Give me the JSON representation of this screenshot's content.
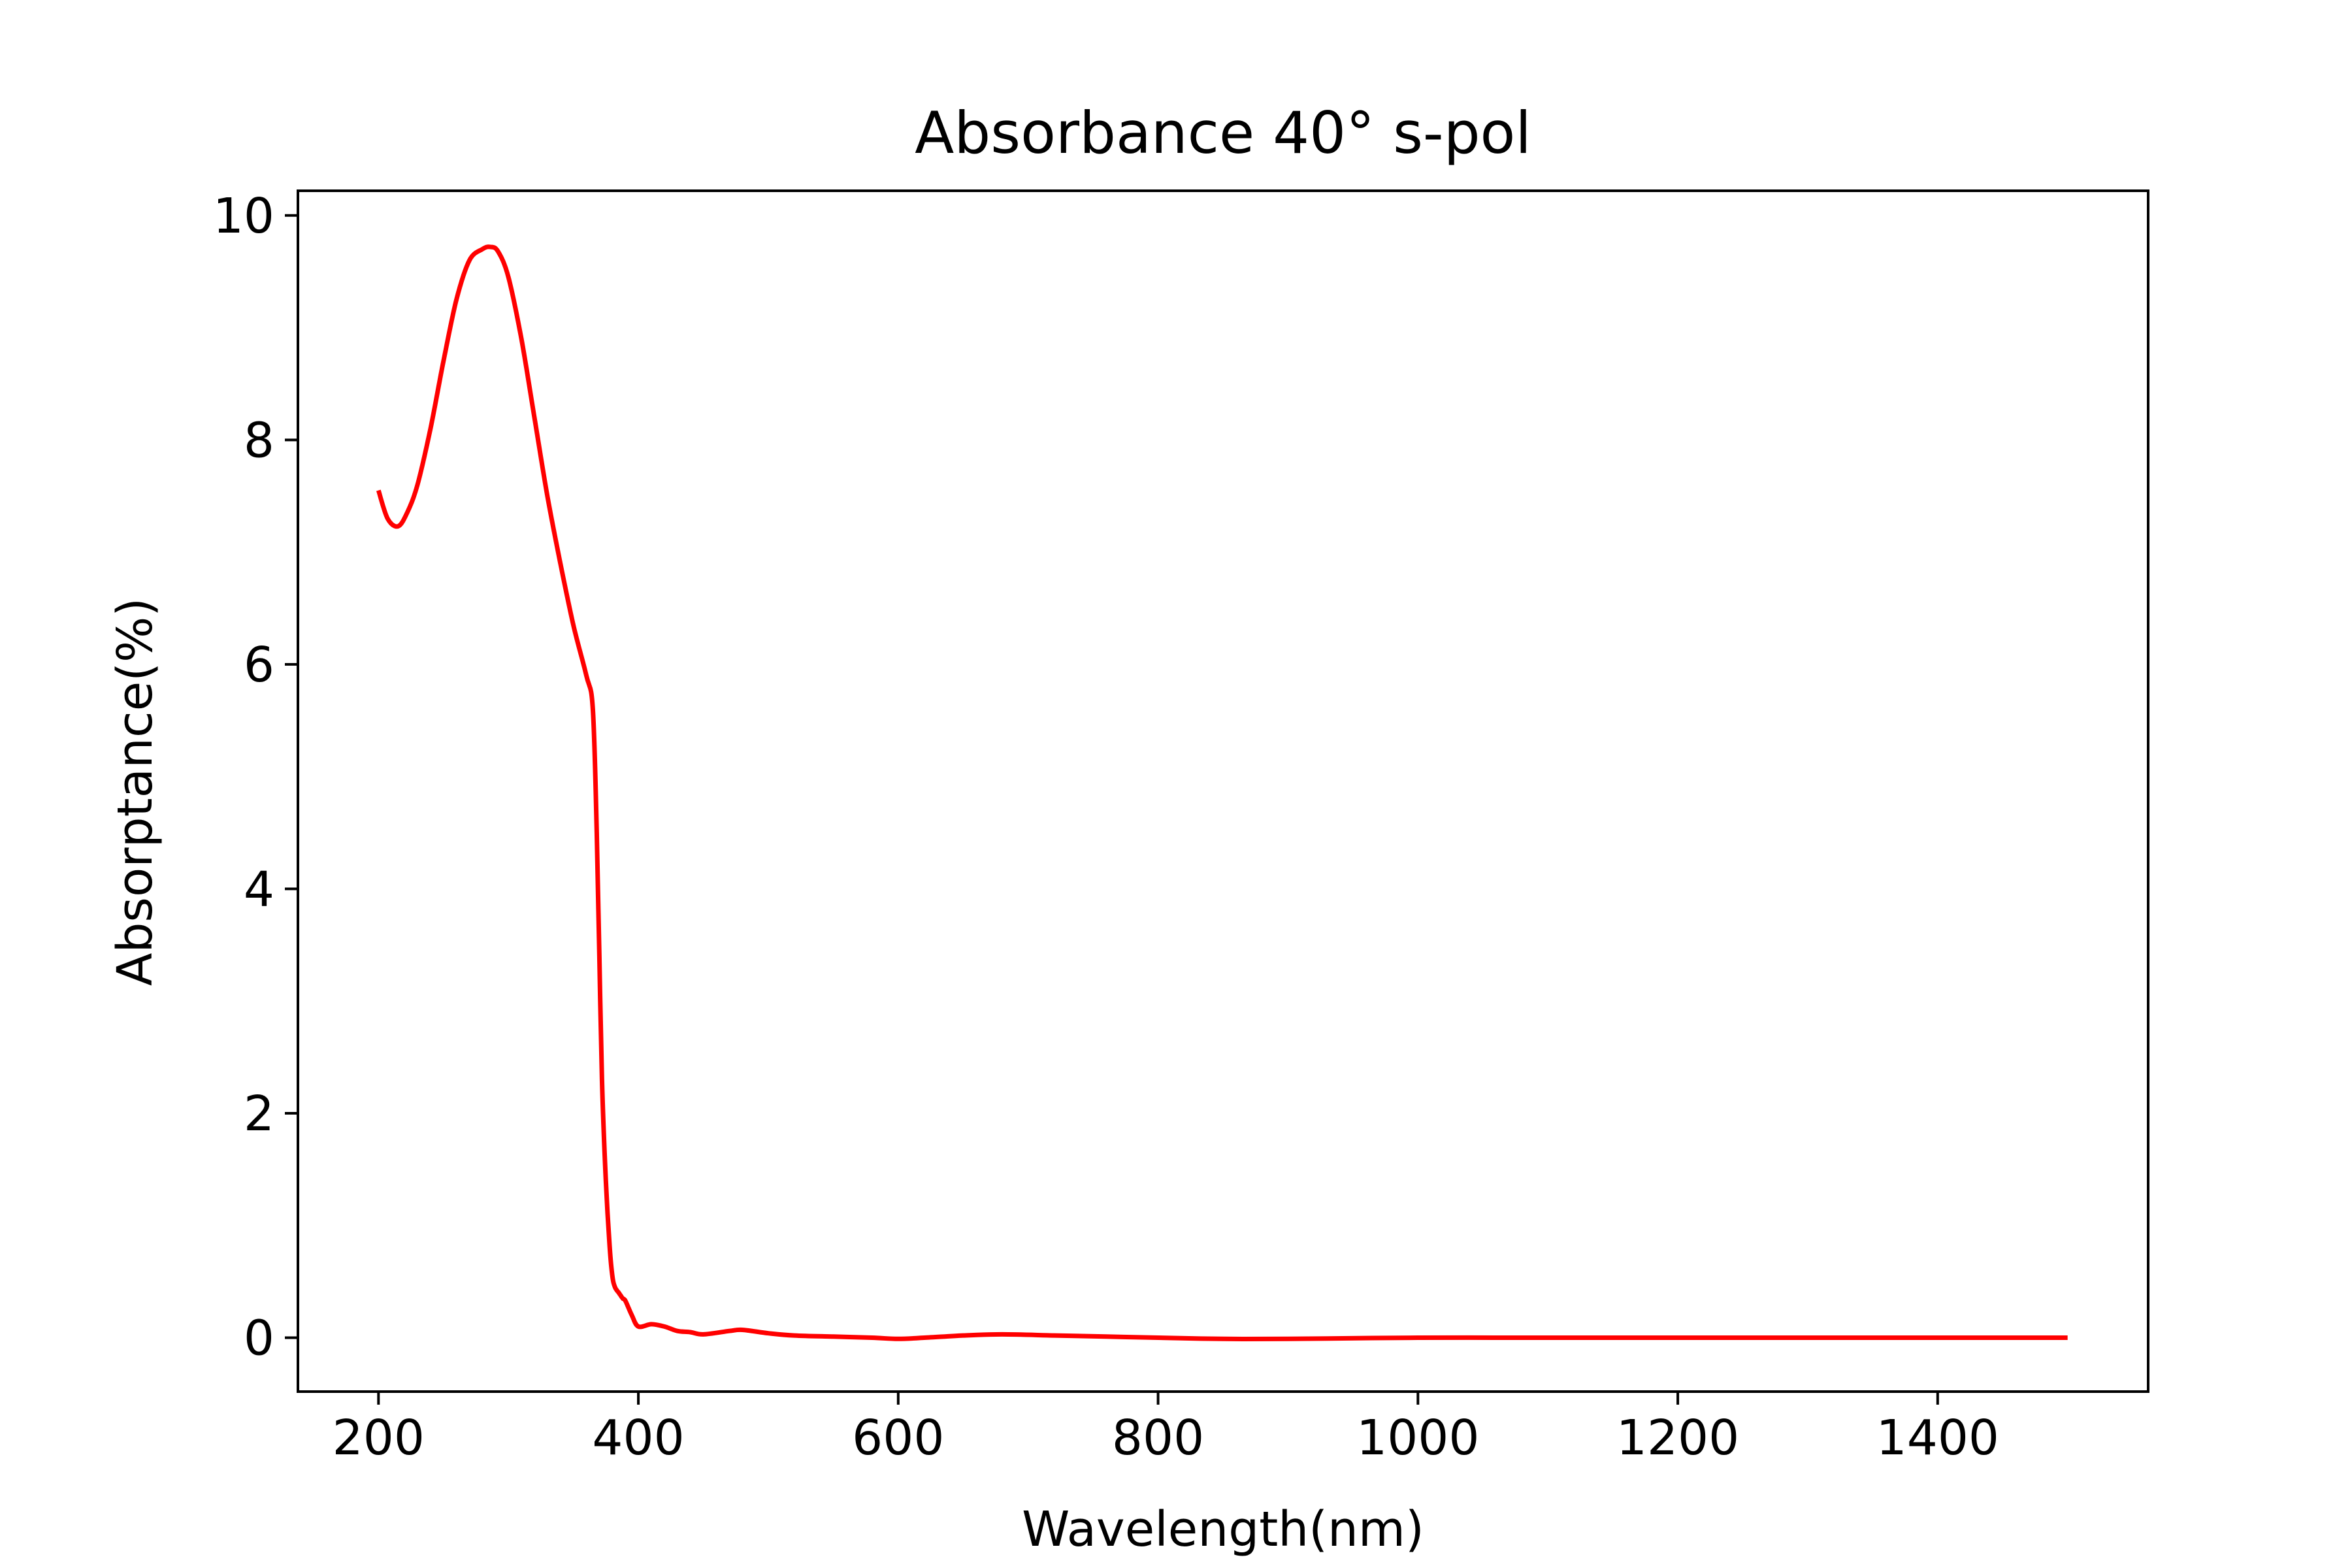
{
  "chart_data": {
    "type": "line",
    "title": "Absorbance 40° s-pol",
    "xlabel": "Wavelength(nm)",
    "ylabel": "Absorptance(%)",
    "xlim": [
      138,
      1562
    ],
    "ylim": [
      -0.48,
      10.22
    ],
    "x_ticks": [
      200,
      400,
      600,
      800,
      1000,
      1200,
      1400
    ],
    "y_ticks": [
      0,
      2,
      4,
      6,
      8,
      10
    ],
    "grid": false,
    "legend": "none",
    "series": [
      {
        "color": "#ff0000",
        "x": [
          200,
          207,
          215,
          222,
          230,
          240,
          250,
          260,
          270,
          280,
          286,
          292,
          300,
          310,
          320,
          330,
          340,
          350,
          360,
          365,
          368,
          370,
          372,
          375,
          378,
          380,
          382,
          385,
          388,
          390,
          395,
          400,
          410,
          420,
          430,
          440,
          450,
          470,
          480,
          500,
          520,
          550,
          580,
          600,
          620,
          650,
          680,
          720,
          760,
          800,
          850,
          900,
          1000,
          1100,
          1200,
          1300,
          1400,
          1500
        ],
        "y": [
          7.55,
          7.3,
          7.23,
          7.35,
          7.6,
          8.1,
          8.7,
          9.25,
          9.6,
          9.7,
          9.72,
          9.68,
          9.45,
          8.9,
          8.2,
          7.5,
          6.9,
          6.35,
          5.9,
          5.6,
          4.5,
          3.4,
          2.3,
          1.4,
          0.8,
          0.55,
          0.45,
          0.4,
          0.35,
          0.33,
          0.2,
          0.1,
          0.12,
          0.1,
          0.06,
          0.05,
          0.03,
          0.06,
          0.07,
          0.04,
          0.02,
          0.01,
          0.0,
          -0.01,
          0.0,
          0.02,
          0.03,
          0.02,
          0.01,
          0.0,
          -0.01,
          -0.01,
          0.0,
          0.0,
          0.0,
          0.0,
          0.0,
          0.0
        ]
      }
    ]
  }
}
